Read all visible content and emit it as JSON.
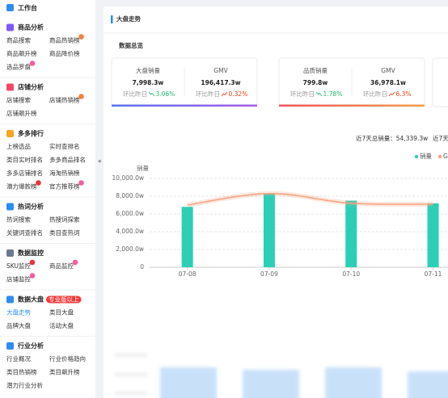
{
  "sidebar": {
    "home": "工作台",
    "groups": [
      {
        "title": "商品分析",
        "items": [
          {
            "label": "商品搜索"
          },
          {
            "label": "商品热销榜",
            "badge": "#f5803e"
          },
          {
            "label": "商品飙升榜"
          },
          {
            "label": "商品降价榜"
          },
          {
            "label": "选品罗盘",
            "badge": "#f25ea0"
          }
        ]
      },
      {
        "title": "店铺分析",
        "items": [
          {
            "label": "店铺搜索"
          },
          {
            "label": "店铺热销榜",
            "badge": "#f5803e"
          },
          {
            "label": "店铺飙升榜"
          }
        ]
      },
      {
        "title": "多多排行",
        "items": [
          {
            "label": "上榜选品"
          },
          {
            "label": "实时查排名"
          },
          {
            "label": "类目实时排名"
          },
          {
            "label": "多多商品排名"
          },
          {
            "label": "多多店铺排名"
          },
          {
            "label": "海淘热销榜"
          },
          {
            "label": "潜力爆款榜",
            "badge": "#e8363c"
          },
          {
            "label": "官方推荐榜",
            "badge": "#f25ea0"
          }
        ]
      },
      {
        "title": "热词分析",
        "items": [
          {
            "label": "热词搜索"
          },
          {
            "label": "热搜词探索"
          },
          {
            "label": "关键词查排名"
          },
          {
            "label": "类目查热词"
          }
        ]
      },
      {
        "title": "数据监控",
        "items": [
          {
            "label": "SKU监控",
            "badge": "#e8363c"
          },
          {
            "label": "商品监控",
            "badge": "#f25ea0"
          },
          {
            "label": "店铺监控",
            "badge": "#f25ea0"
          }
        ]
      },
      {
        "title": "数据大盘",
        "tag": "专业版以上",
        "items": [
          {
            "label": "大盘走势",
            "active": true
          },
          {
            "label": "类目大盘"
          },
          {
            "label": "品牌大盘"
          },
          {
            "label": "活动大盘"
          }
        ]
      },
      {
        "title": "行业分析",
        "items": [
          {
            "label": "行业概况"
          },
          {
            "label": "行业价格趋向"
          },
          {
            "label": "类目热销榜"
          },
          {
            "label": "类目飙升榜"
          },
          {
            "label": "潜力行业分析"
          }
        ]
      }
    ]
  },
  "main": {
    "title": "大盘走势",
    "overview_title": "数据总览",
    "cards": [
      {
        "metrics": [
          {
            "label": "大盘销量",
            "value": "7,998.3w",
            "compare_label": "环比昨日",
            "change": "3.06%",
            "direction": "down"
          },
          {
            "label": "GMV",
            "value": "196,417.3w",
            "compare_label": "环比昨日",
            "change": "0.32%",
            "direction": "up"
          }
        ]
      },
      {
        "metrics": [
          {
            "label": "品质销量",
            "value": "799.8w",
            "compare_label": "环比昨日",
            "change": "1.78%",
            "direction": "down"
          },
          {
            "label": "GMV",
            "value": "36,978.1w",
            "compare_label": "环比昨日",
            "change": "6.3%",
            "direction": "up"
          }
        ]
      }
    ],
    "summary": "近7天总销量：54,339.3w",
    "summary_next": "近7天"
  },
  "chart_data": {
    "type": "bar-line",
    "y_label": "销量",
    "categories": [
      "07-08",
      "07-09",
      "07-10",
      "07-11"
    ],
    "series": [
      {
        "name": "销量",
        "type": "bar",
        "color": "#2ccfb6",
        "values": [
          6800,
          8300,
          7500,
          7200
        ]
      },
      {
        "name": "GMV",
        "type": "line",
        "color": "#f6a37f",
        "values": [
          7000,
          8300,
          7200,
          7100
        ]
      }
    ],
    "ylim": [
      0,
      10000
    ],
    "yticks": [
      0,
      {
        "value": 2000,
        "label": "2,000.0w"
      },
      {
        "value": 4000,
        "label": "4,000.0w"
      },
      {
        "value": 6000,
        "label": "6,000.0w"
      },
      {
        "value": 8000,
        "label": "8,000.0w"
      },
      {
        "value": 10000,
        "label": "10,000.0w"
      }
    ],
    "grid": true
  }
}
